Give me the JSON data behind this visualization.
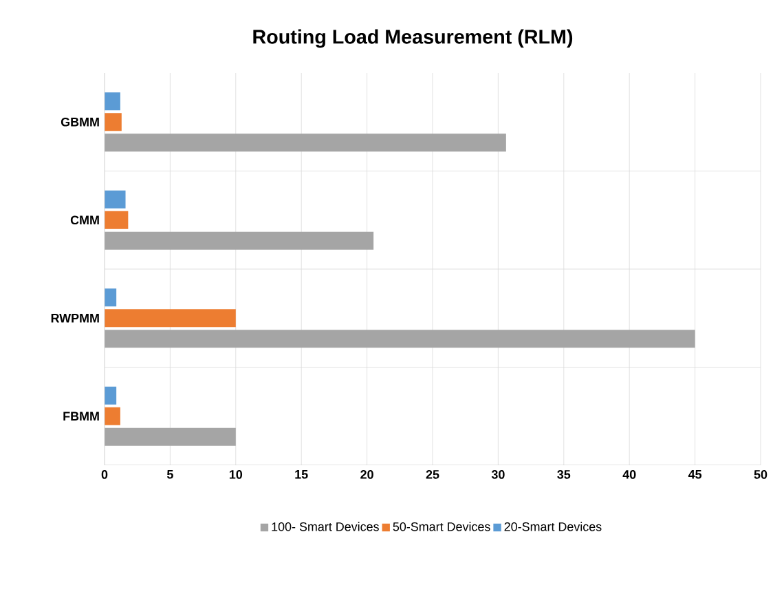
{
  "chart_data": {
    "type": "bar",
    "orientation": "horizontal",
    "title": "Routing Load Measurement (RLM)",
    "categories": [
      "GBMM",
      "CMM",
      "RWPMM",
      "FBMM"
    ],
    "series": [
      {
        "name": "100- Smart Devices",
        "color": "#a5a5a5",
        "values": [
          30.6,
          20.5,
          45,
          10
        ]
      },
      {
        "name": "50-Smart Devices",
        "color": "#ed7d31",
        "values": [
          1.3,
          1.8,
          10,
          1.2
        ]
      },
      {
        "name": "20-Smart Devices",
        "color": "#5b9bd5",
        "values": [
          1.2,
          1.6,
          0.9,
          0.9
        ]
      }
    ],
    "xlim": [
      0,
      50
    ],
    "xticks": [
      0,
      5,
      10,
      15,
      20,
      25,
      30,
      35,
      40,
      45,
      50
    ],
    "grid": "x",
    "legend": "bottom"
  }
}
